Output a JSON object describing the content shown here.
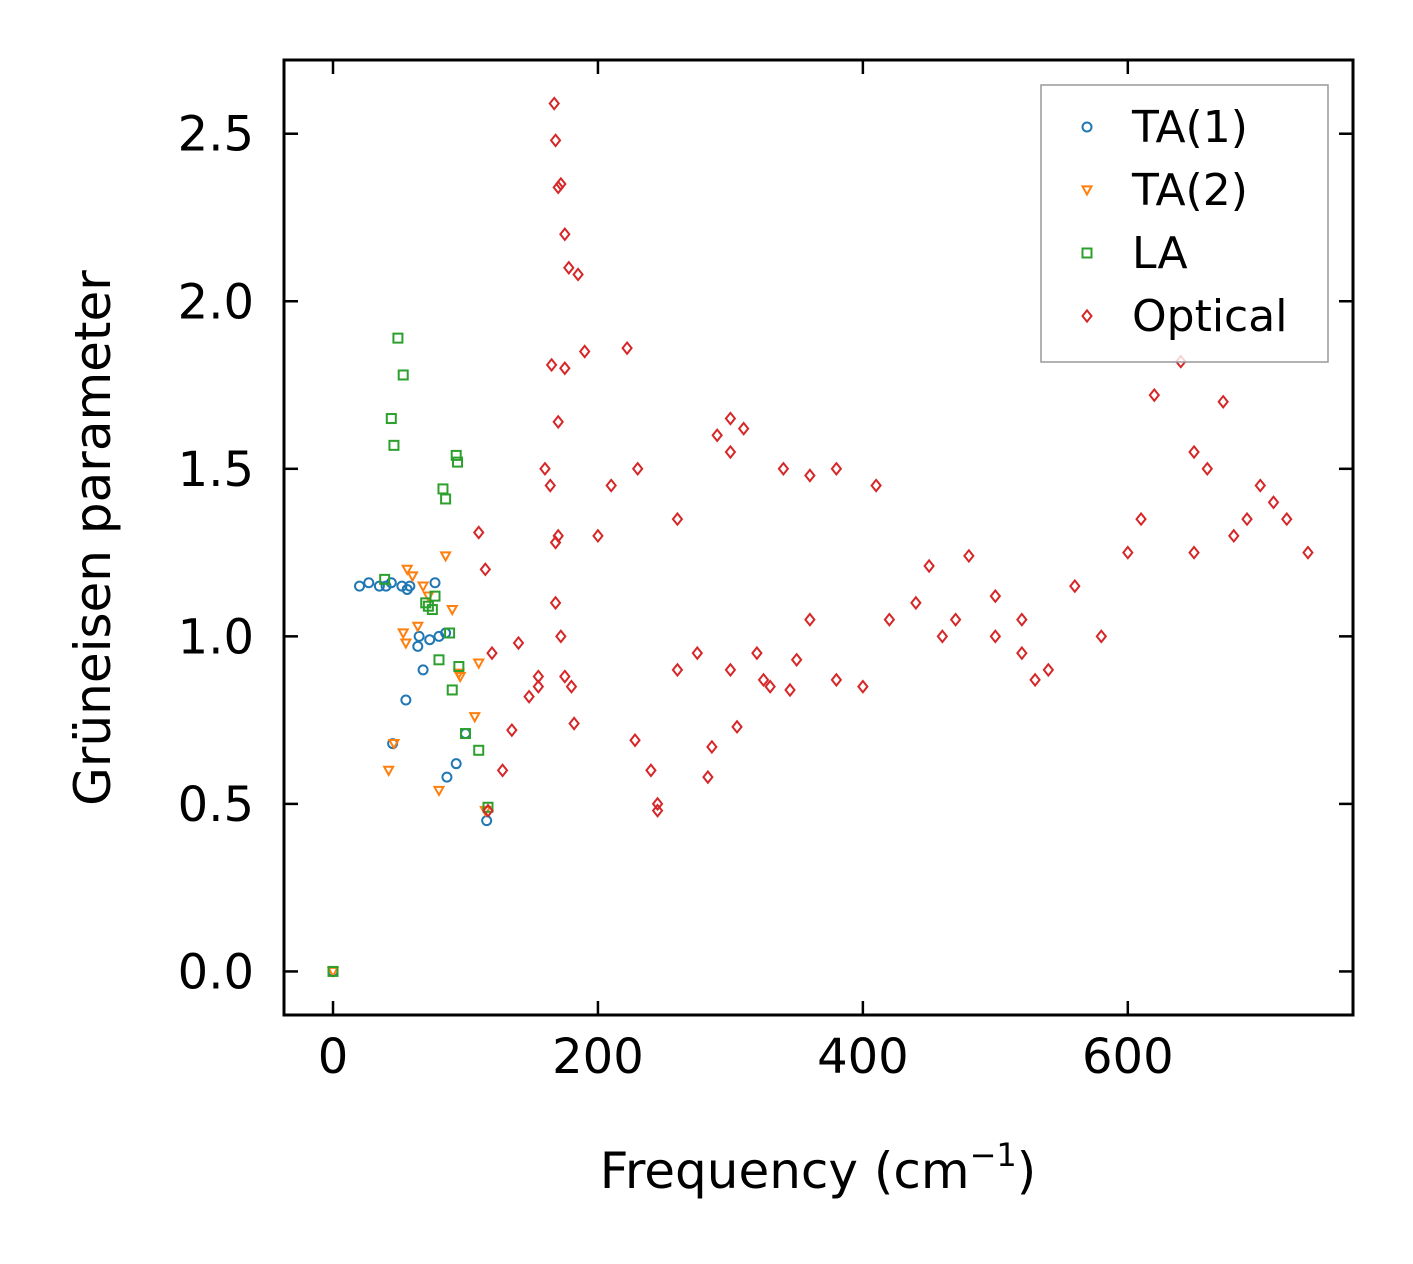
{
  "chart_data": {
    "type": "scatter",
    "title": "",
    "xlabel_main": "Frequency (cm",
    "xlabel_sup": "−1",
    "xlabel_close": ")",
    "ylabel": "Grüneisen parameter",
    "xlim": [
      -37,
      770
    ],
    "ylim": [
      -0.13,
      2.72
    ],
    "x_ticks": [
      0,
      200,
      400,
      600
    ],
    "y_ticks": [
      0.0,
      0.5,
      1.0,
      1.5,
      2.0,
      2.5
    ],
    "x_tick_labels": [
      "0",
      "200",
      "400",
      "600"
    ],
    "y_tick_labels": [
      "0.0",
      "0.5",
      "1.0",
      "1.5",
      "2.0",
      "2.5"
    ],
    "legend_position": "top-right",
    "series": [
      {
        "name": "TA(1)",
        "marker": "circle",
        "color": "#1f77b4",
        "points": [
          [
            0,
            0
          ],
          [
            20,
            1.15
          ],
          [
            27,
            1.16
          ],
          [
            35,
            1.15
          ],
          [
            40,
            1.15
          ],
          [
            44,
            1.16
          ],
          [
            52,
            1.15
          ],
          [
            56,
            1.14
          ],
          [
            58,
            1.15
          ],
          [
            65,
            1.0
          ],
          [
            64,
            0.97
          ],
          [
            68,
            0.9
          ],
          [
            73,
            0.99
          ],
          [
            77,
            1.16
          ],
          [
            80,
            1.0
          ],
          [
            85,
            1.01
          ],
          [
            55,
            0.81
          ],
          [
            45,
            0.68
          ],
          [
            86,
            0.58
          ],
          [
            93,
            0.62
          ],
          [
            100,
            0.71
          ],
          [
            116,
            0.45
          ]
        ]
      },
      {
        "name": "TA(2)",
        "marker": "triangle-down",
        "color": "#ff7f0e",
        "points": [
          [
            0,
            0
          ],
          [
            42,
            0.6
          ],
          [
            46,
            0.68
          ],
          [
            53,
            1.01
          ],
          [
            55,
            0.98
          ],
          [
            56,
            1.2
          ],
          [
            60,
            1.18
          ],
          [
            64,
            1.03
          ],
          [
            68,
            1.15
          ],
          [
            72,
            1.12
          ],
          [
            80,
            0.54
          ],
          [
            85,
            1.24
          ],
          [
            90,
            1.08
          ],
          [
            95,
            0.89
          ],
          [
            96,
            0.88
          ],
          [
            107,
            0.76
          ],
          [
            110,
            0.92
          ],
          [
            115,
            0.48
          ]
        ]
      },
      {
        "name": "LA",
        "marker": "square",
        "color": "#2ca02c",
        "points": [
          [
            0,
            0
          ],
          [
            39,
            1.17
          ],
          [
            44,
            1.65
          ],
          [
            46,
            1.57
          ],
          [
            49,
            1.89
          ],
          [
            53,
            1.78
          ],
          [
            70,
            1.1
          ],
          [
            72,
            1.09
          ],
          [
            75,
            1.08
          ],
          [
            77,
            1.12
          ],
          [
            80,
            0.93
          ],
          [
            83,
            1.44
          ],
          [
            85,
            1.41
          ],
          [
            88,
            1.01
          ],
          [
            90,
            0.84
          ],
          [
            93,
            1.54
          ],
          [
            94,
            1.52
          ],
          [
            95,
            0.91
          ],
          [
            100,
            0.71
          ],
          [
            110,
            0.66
          ],
          [
            117,
            0.49
          ]
        ]
      },
      {
        "name": "Optical",
        "marker": "diamond",
        "color": "#d62728",
        "points": [
          [
            167,
            2.59
          ],
          [
            168,
            2.48
          ],
          [
            170,
            2.34
          ],
          [
            172,
            2.35
          ],
          [
            175,
            2.2
          ],
          [
            178,
            2.1
          ],
          [
            185,
            2.08
          ],
          [
            165,
            1.81
          ],
          [
            175,
            1.8
          ],
          [
            190,
            1.85
          ],
          [
            222,
            1.86
          ],
          [
            170,
            1.64
          ],
          [
            160,
            1.5
          ],
          [
            164,
            1.45
          ],
          [
            168,
            1.28
          ],
          [
            170,
            1.3
          ],
          [
            168,
            1.1
          ],
          [
            172,
            1.0
          ],
          [
            175,
            0.88
          ],
          [
            180,
            0.85
          ],
          [
            182,
            0.74
          ],
          [
            245,
            0.5
          ],
          [
            245,
            0.48
          ],
          [
            240,
            0.6
          ],
          [
            228,
            0.69
          ],
          [
            283,
            0.58
          ],
          [
            286,
            0.67
          ],
          [
            330,
            0.85
          ],
          [
            345,
            0.84
          ],
          [
            380,
            0.87
          ],
          [
            400,
            0.85
          ],
          [
            450,
            1.21
          ],
          [
            480,
            1.24
          ],
          [
            620,
            1.72
          ],
          [
            640,
            1.82
          ],
          [
            672,
            1.7
          ],
          [
            680,
            1.3
          ],
          [
            700,
            1.45
          ],
          [
            736,
            1.25
          ],
          [
            540,
            0.9
          ],
          [
            530,
            0.87
          ],
          [
            148,
            0.82
          ],
          [
            155,
            0.85
          ],
          [
            135,
            0.72
          ],
          [
            128,
            0.6
          ],
          [
            117,
            0.48
          ],
          [
            110,
            1.31
          ],
          [
            115,
            1.2
          ],
          [
            120,
            0.95
          ],
          [
            140,
            0.98
          ],
          [
            155,
            0.88
          ],
          [
            200,
            1.3
          ],
          [
            210,
            1.45
          ],
          [
            230,
            1.5
          ],
          [
            260,
            1.35
          ],
          [
            290,
            1.6
          ],
          [
            300,
            1.55
          ],
          [
            340,
            1.5
          ],
          [
            360,
            1.48
          ],
          [
            380,
            1.5
          ],
          [
            410,
            1.45
          ],
          [
            260,
            0.9
          ],
          [
            275,
            0.95
          ],
          [
            300,
            0.9
          ],
          [
            320,
            0.95
          ],
          [
            350,
            0.93
          ],
          [
            420,
            1.05
          ],
          [
            460,
            1.0
          ],
          [
            500,
            1.0
          ],
          [
            520,
            0.95
          ],
          [
            560,
            1.15
          ],
          [
            580,
            1.0
          ],
          [
            600,
            1.25
          ],
          [
            610,
            1.35
          ],
          [
            650,
            1.55
          ],
          [
            660,
            1.5
          ],
          [
            690,
            1.35
          ],
          [
            710,
            1.4
          ],
          [
            720,
            1.35
          ],
          [
            650,
            1.25
          ],
          [
            305,
            0.73
          ],
          [
            325,
            0.87
          ],
          [
            300,
            1.65
          ],
          [
            310,
            1.62
          ],
          [
            360,
            1.05
          ],
          [
            440,
            1.1
          ],
          [
            470,
            1.05
          ],
          [
            500,
            1.12
          ],
          [
            520,
            1.05
          ]
        ]
      }
    ]
  }
}
